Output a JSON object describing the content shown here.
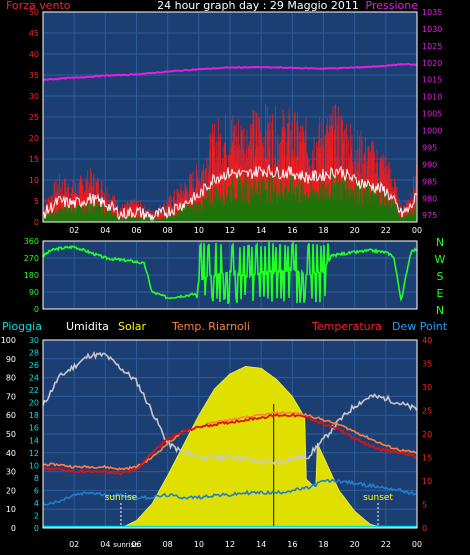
{
  "header": {
    "title": "24 hour graph day : 29 Maggio 2011",
    "left_label": "Forza vento",
    "right_label": "Pressione"
  },
  "legend_row": {
    "pioggia": "Pioggia",
    "umidita": "Umidita",
    "solar": "Solar",
    "temp_riarnoli": "Temp. Riarnoli",
    "temperatura": "Temperatura",
    "dew_point": "Dew Point"
  },
  "direction_labels": [
    "N",
    "W",
    "S",
    "E",
    "N"
  ],
  "annotations": {
    "sunrise": "sunrise",
    "sunset": "sunset"
  },
  "colors": {
    "background": "#000000",
    "plot_bg": "#1c3f73",
    "grid": "#2d5c99",
    "wind_gust": "#ff1a1a",
    "wind_avg": "#0a7d0a",
    "wind_white": "#ffffff",
    "pressure": "#e020e0",
    "direction": "#22ff22",
    "humidity": "#c8c8c8",
    "solar": "#e0e000",
    "temp_riarnoli": "#ff8040",
    "temperature": "#e01010",
    "dew_point": "#1f7fd0",
    "rain": "#00e0e0"
  },
  "chart_data": [
    {
      "type": "area",
      "name": "wind-pressure",
      "title": "24 hour graph day : 29 Maggio 2011",
      "x_tick_labels": [
        "02",
        "04",
        "06",
        "08",
        "10",
        "12",
        "14",
        "16",
        "18",
        "20",
        "22",
        "00"
      ],
      "x_range_hours": [
        0,
        24
      ],
      "y_left": {
        "label": "Forza vento",
        "ticks": [
          0,
          5,
          10,
          15,
          20,
          25,
          30,
          35,
          40,
          45,
          50
        ],
        "range": [
          0,
          50
        ]
      },
      "y_right": {
        "label": "Pressione",
        "ticks": [
          975,
          980,
          985,
          990,
          995,
          1000,
          1005,
          1010,
          1015,
          1020,
          1025,
          1030,
          1035
        ],
        "range": [
          973,
          1035
        ]
      },
      "series": [
        {
          "name": "Pressione",
          "hours": [
            0,
            2,
            4,
            6,
            8,
            10,
            12,
            14,
            16,
            18,
            20,
            22,
            23,
            24
          ],
          "values": [
            1015.0,
            1015.6,
            1016.2,
            1016.6,
            1017.4,
            1018.1,
            1018.6,
            1018.7,
            1018.5,
            1018.3,
            1018.6,
            1019.1,
            1019.6,
            1019.4
          ]
        },
        {
          "name": "Forza vento",
          "hours": [
            0,
            1,
            2,
            3,
            4,
            5,
            6,
            7,
            8,
            9,
            10,
            11,
            12,
            13,
            14,
            15,
            16,
            17,
            18,
            19,
            20,
            21,
            22,
            22.5,
            23,
            23.5,
            24
          ],
          "values": [
            3,
            8,
            7,
            9,
            7,
            3,
            4,
            2,
            4,
            7,
            10,
            17,
            19,
            18,
            20,
            19,
            19,
            17,
            18,
            20,
            16,
            14,
            12,
            8,
            3,
            5,
            10
          ]
        },
        {
          "name": "wind_avg",
          "hours": [
            0,
            1,
            2,
            3,
            4,
            5,
            6,
            7,
            8,
            9,
            10,
            11,
            12,
            13,
            14,
            15,
            16,
            17,
            18,
            19,
            20,
            21,
            22,
            22.5,
            23,
            23.5,
            24
          ],
          "values": [
            1,
            3,
            3,
            4,
            3,
            1,
            1,
            1,
            1,
            3,
            4,
            7,
            8,
            8,
            9,
            8,
            8,
            7,
            8,
            9,
            8,
            7,
            6,
            4,
            1,
            2,
            4
          ]
        }
      ]
    },
    {
      "type": "line",
      "name": "wind-direction",
      "y_ticks": [
        0,
        90,
        180,
        270,
        360
      ],
      "y_range": [
        0,
        360
      ],
      "series": [
        {
          "name": "direction",
          "hours": [
            0,
            0.5,
            1,
            2,
            3,
            4,
            5,
            6,
            6.5,
            7,
            8,
            9,
            9.8,
            10,
            11,
            12,
            13,
            14,
            15,
            16,
            17,
            18,
            18.5,
            19,
            20,
            21,
            22,
            22.5,
            23,
            23.3,
            23.6,
            24
          ],
          "values": [
            280,
            310,
            320,
            330,
            300,
            270,
            260,
            250,
            240,
            90,
            60,
            70,
            80,
            150,
            180,
            200,
            170,
            190,
            200,
            210,
            180,
            200,
            280,
            290,
            300,
            310,
            300,
            280,
            40,
            180,
            300,
            320
          ]
        }
      ]
    },
    {
      "type": "line",
      "name": "weather",
      "legend": [
        "Pioggia",
        "Umidita",
        "Solar",
        "Temp. Riarnoli",
        "Temperatura",
        "Dew Point"
      ],
      "x_tick_labels": [
        "02",
        "04",
        "sunrise",
        "06",
        "08",
        "10",
        "12",
        "14",
        "16",
        "18",
        "20",
        "22",
        "00"
      ],
      "y_outer_left": {
        "ticks": [
          0,
          10,
          20,
          30,
          40,
          50,
          60,
          70,
          80,
          90,
          100
        ],
        "range": [
          0,
          100
        ]
      },
      "y_inner_left": {
        "ticks": [
          0,
          2,
          4,
          6,
          8,
          10,
          12,
          14,
          16,
          18,
          20,
          22,
          24,
          26,
          28,
          30
        ],
        "range": [
          0,
          30
        ]
      },
      "y_right": {
        "ticks": [
          0,
          5,
          10,
          15,
          20,
          25,
          30,
          35,
          40
        ],
        "range": [
          0,
          40
        ]
      },
      "annotations": [
        {
          "text": "sunrise",
          "hour": 5.0
        },
        {
          "text": "sunset",
          "hour": 21.5
        }
      ],
      "series": [
        {
          "name": "Umidita",
          "axis": "outer_left",
          "hours": [
            0,
            1,
            2,
            3,
            4,
            5,
            6,
            7,
            8,
            9,
            10,
            11,
            12,
            13,
            14,
            15,
            16,
            17,
            18,
            19,
            20,
            21,
            22,
            23,
            24
          ],
          "values": [
            65,
            80,
            86,
            92,
            92,
            85,
            78,
            62,
            45,
            40,
            38,
            37,
            38,
            37,
            35,
            35,
            37,
            38,
            47,
            57,
            65,
            70,
            69,
            66,
            63
          ]
        },
        {
          "name": "Solar",
          "axis": "outer_left",
          "hours": [
            5,
            6,
            7,
            8,
            9,
            10,
            11,
            12,
            13,
            14,
            15,
            16,
            17,
            18,
            19,
            20,
            21,
            22
          ],
          "values": [
            0,
            4,
            13,
            28,
            44,
            60,
            74,
            82,
            86,
            85,
            79,
            70,
            56,
            38,
            20,
            9,
            2,
            0
          ]
        },
        {
          "name": "Temp. Riarnoli",
          "axis": "right",
          "hours": [
            0,
            1,
            2,
            3,
            4,
            5,
            6,
            7,
            8,
            9,
            10,
            11,
            12,
            13,
            14,
            15,
            16,
            17,
            18,
            19,
            20,
            21,
            22,
            23,
            24
          ],
          "values": [
            13.5,
            13.5,
            13.0,
            13.0,
            13.0,
            12.5,
            13.0,
            15.0,
            18.0,
            20.5,
            21.5,
            22.5,
            23.0,
            23.5,
            24.0,
            24.5,
            24.5,
            24.0,
            23.0,
            22.0,
            20.5,
            19.0,
            17.5,
            16.5,
            16.0
          ]
        },
        {
          "name": "Temperatura",
          "axis": "right",
          "hours": [
            0,
            1,
            2,
            3,
            4,
            5,
            6,
            7,
            8,
            9,
            10,
            11,
            12,
            13,
            14,
            15,
            16,
            17,
            18,
            19,
            20,
            21,
            22,
            23,
            24
          ],
          "values": [
            12.5,
            12.5,
            12.0,
            12.0,
            12.0,
            11.5,
            12.5,
            16.0,
            19.0,
            20.5,
            21.5,
            22.0,
            22.5,
            23.0,
            23.5,
            24.0,
            24.0,
            23.5,
            22.0,
            21.0,
            19.0,
            17.5,
            16.5,
            16.0,
            15.0
          ]
        },
        {
          "name": "Dew Point",
          "axis": "right",
          "hours": [
            0,
            1,
            2,
            3,
            4,
            5,
            6,
            7,
            8,
            9,
            10,
            11,
            12,
            13,
            14,
            15,
            16,
            17,
            18,
            19,
            20,
            21,
            22,
            23,
            24
          ],
          "values": [
            5.0,
            5.5,
            7.0,
            7.5,
            7.0,
            7.0,
            6.5,
            6.5,
            7.0,
            6.5,
            6.5,
            7.0,
            7.0,
            7.5,
            7.5,
            7.5,
            8.0,
            8.5,
            10.0,
            10.0,
            9.5,
            9.0,
            8.5,
            8.0,
            7.0
          ]
        },
        {
          "name": "Pioggia",
          "axis": "inner_left",
          "hours": [
            0,
            24
          ],
          "values": [
            0,
            0
          ]
        }
      ]
    }
  ]
}
